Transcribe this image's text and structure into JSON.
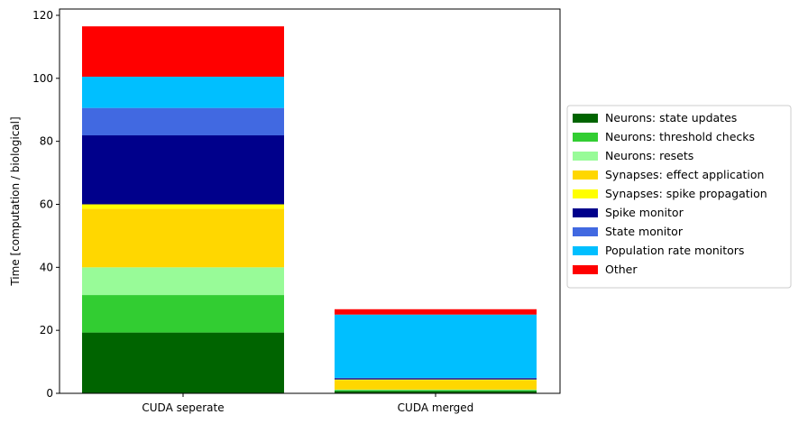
{
  "chart_data": {
    "type": "bar",
    "stacked": true,
    "categories": [
      "CUDA seperate",
      "CUDA merged"
    ],
    "series": [
      {
        "name": "Neurons: state updates",
        "color": "#006400",
        "values": [
          19.3,
          0.7
        ]
      },
      {
        "name": "Neurons: threshold checks",
        "color": "#32CD32",
        "values": [
          11.9,
          0.3
        ]
      },
      {
        "name": "Neurons: resets",
        "color": "#98FB98",
        "values": [
          8.8,
          0.2
        ]
      },
      {
        "name": "Synapses: effect application",
        "color": "#FFD700",
        "values": [
          18.6,
          3.0
        ]
      },
      {
        "name": "Synapses: spike propagation",
        "color": "#FFFF00",
        "values": [
          1.4,
          0.2
        ]
      },
      {
        "name": "Spike monitor",
        "color": "#00008B",
        "values": [
          21.9,
          0.4
        ]
      },
      {
        "name": "State monitor",
        "color": "#4169E1",
        "values": [
          8.7,
          0.1
        ]
      },
      {
        "name": "Population rate monitors",
        "color": "#00BFFF",
        "values": [
          9.9,
          20.1
        ]
      },
      {
        "name": "Other",
        "color": "#FF0000",
        "values": [
          16.0,
          1.7
        ]
      }
    ],
    "ylabel": "Time [computation / biological]",
    "xlabel": "",
    "ylim": [
      0,
      122
    ],
    "yticks": [
      0,
      20,
      40,
      60,
      80,
      100,
      120
    ],
    "grid": false,
    "legend_position": "outside-right"
  }
}
